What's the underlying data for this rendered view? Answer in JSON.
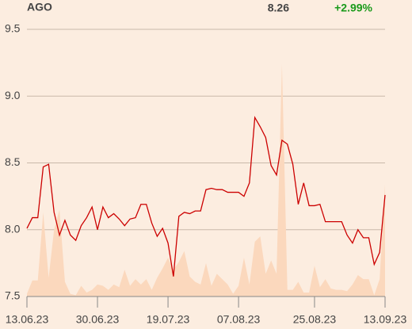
{
  "chart_data": {
    "type": "line",
    "title": "AGO",
    "last_price": 8.26,
    "change": "+2.99%",
    "change_color": "#1a9a1a",
    "categories": [
      "13.06.23",
      null,
      null,
      null,
      null,
      null,
      null,
      null,
      null,
      null,
      null,
      null,
      null,
      "30.06.23",
      null,
      null,
      null,
      null,
      null,
      null,
      null,
      null,
      null,
      null,
      null,
      null,
      "19.07.23",
      null,
      null,
      null,
      null,
      null,
      null,
      null,
      null,
      null,
      null,
      null,
      null,
      "07.08.23",
      null,
      null,
      null,
      null,
      null,
      null,
      null,
      null,
      null,
      null,
      null,
      null,
      null,
      "25.08.23",
      null,
      null,
      null,
      null,
      null,
      null,
      null,
      null,
      null,
      null,
      null,
      null,
      "13.09.23"
    ],
    "series": [
      {
        "name": "AGO",
        "type": "line",
        "color": "#cc0000",
        "values": [
          8.01,
          8.09,
          8.09,
          8.47,
          8.49,
          8.13,
          7.96,
          8.07,
          7.96,
          7.92,
          8.03,
          8.09,
          8.17,
          8.0,
          8.17,
          8.09,
          8.12,
          8.08,
          8.03,
          8.08,
          8.09,
          8.19,
          8.19,
          8.05,
          7.95,
          8.01,
          7.9,
          7.65,
          8.1,
          8.13,
          8.12,
          8.14,
          8.14,
          8.3,
          8.31,
          8.3,
          8.3,
          8.28,
          8.28,
          8.28,
          8.25,
          8.35,
          8.84,
          8.77,
          8.69,
          8.48,
          8.41,
          8.67,
          8.64,
          8.49,
          8.19,
          8.35,
          8.18,
          8.18,
          8.19,
          8.06,
          8.06,
          8.06,
          8.06,
          7.96,
          7.9,
          8.0,
          7.94,
          7.94,
          7.74,
          7.83,
          8.26
        ]
      },
      {
        "name": "volume",
        "type": "area",
        "color": "#fbd8bd",
        "values": [
          7.52,
          7.62,
          7.62,
          8.13,
          7.64,
          8.0,
          8.15,
          7.61,
          7.52,
          7.51,
          7.58,
          7.53,
          7.55,
          7.59,
          7.58,
          7.55,
          7.59,
          7.57,
          7.7,
          7.58,
          7.63,
          7.59,
          7.63,
          7.55,
          7.64,
          7.71,
          7.79,
          7.7,
          7.76,
          7.84,
          7.65,
          7.61,
          7.59,
          7.75,
          7.58,
          7.67,
          7.63,
          7.59,
          7.52,
          7.58,
          7.79,
          7.59,
          7.91,
          7.95,
          7.67,
          7.77,
          7.67,
          9.24,
          7.55,
          7.55,
          7.61,
          7.53,
          7.53,
          7.73,
          7.57,
          7.63,
          7.56,
          7.55,
          7.55,
          7.54,
          7.59,
          7.66,
          7.63,
          7.63,
          7.51,
          7.63,
          8.34
        ]
      }
    ],
    "ylim": [
      7.5,
      9.5
    ],
    "yticks": [
      7.5,
      {
        "value": 8.0,
        "label": "8.0"
      },
      8.5,
      {
        "value": 9.0,
        "label": "9.0"
      },
      9.5
    ],
    "grid": true
  }
}
